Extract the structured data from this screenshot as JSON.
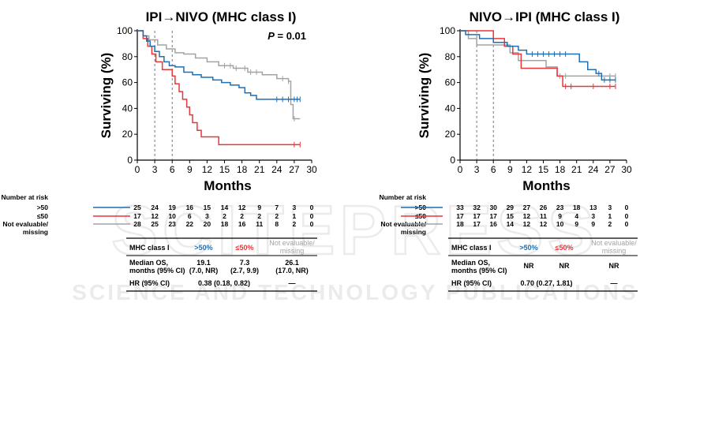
{
  "watermark": {
    "big": "SCITEPRESS",
    "small": "SCIENCE AND TECHNOLOGY PUBLICATIONS"
  },
  "colors": {
    "gt50": "#1f6fb4",
    "le50": "#e8363a",
    "nonevaluable": "#a3a3a3"
  },
  "chart_data": [
    {
      "type": "line",
      "step": true,
      "title": "IPI→NIVO (MHC class I)",
      "annotation": "P = 0.01",
      "annotation_parts": [
        "P",
        " = 0.01"
      ],
      "xlabel": "Months",
      "ylabel": "Surviving (%)",
      "xlim": [
        0,
        30
      ],
      "ylim": [
        0,
        100
      ],
      "xticks": [
        "0",
        "3",
        "6",
        "9",
        "12",
        "15",
        "18",
        "21",
        "24",
        "27",
        "30"
      ],
      "yticks": [
        "0",
        "20",
        "40",
        "60",
        "80",
        "100"
      ],
      "reference_lines_x": [
        3,
        6
      ],
      "series": [
        {
          "key": "gt50",
          "color": "#1f6fb4",
          "x": [
            0,
            1.0,
            1.6,
            2.2,
            3.0,
            3.8,
            4.6,
            5.5,
            6.5,
            8.0,
            9.5,
            11.0,
            13.0,
            14.5,
            16.0,
            17.5,
            18.5,
            19.5,
            20.5,
            28.0
          ],
          "y": [
            100,
            96,
            92,
            88,
            84,
            80,
            76,
            73,
            72,
            68,
            66,
            64,
            62,
            60,
            58,
            56,
            52,
            50,
            47,
            47
          ],
          "censor_x": [
            24,
            25,
            26,
            27,
            27.5,
            28
          ]
        },
        {
          "key": "le50",
          "color": "#e8363a",
          "x": [
            0,
            1.0,
            1.8,
            2.5,
            3.2,
            4.3,
            6.0,
            6.5,
            7.2,
            7.8,
            8.5,
            9.0,
            9.5,
            10.3,
            11.0,
            14.0,
            28.0
          ],
          "y": [
            100,
            94,
            88,
            82,
            76,
            70,
            65,
            59,
            53,
            47,
            41,
            35,
            29,
            23,
            18,
            12,
            12
          ],
          "censor_x": [
            27,
            28
          ]
        },
        {
          "key": "nonevaluable",
          "color": "#a3a3a3",
          "x": [
            0,
            1.0,
            2.0,
            3.5,
            5.0,
            6.5,
            8.0,
            10.0,
            12.0,
            14.0,
            16.5,
            19.0,
            21.5,
            24.0,
            26.0,
            26.4,
            26.8,
            28.0
          ],
          "y": [
            100,
            96,
            93,
            89,
            86,
            83,
            82,
            79,
            76,
            73,
            71,
            68,
            66,
            63,
            61,
            43,
            32,
            32
          ],
          "censor_x": [
            15,
            16,
            17,
            18.5,
            19.5,
            20.5,
            25,
            26,
            27
          ]
        }
      ],
      "number_at_risk": {
        "label": "Number at risk",
        "rows": [
          {
            "key": "gt50",
            "label": ">50",
            "values": [
              "25",
              "24",
              "19",
              "16",
              "15",
              "14",
              "12",
              "9",
              "7",
              "3",
              "0"
            ]
          },
          {
            "key": "le50",
            "label": "≤50",
            "values": [
              "17",
              "12",
              "10",
              "6",
              "3",
              "2",
              "2",
              "2",
              "2",
              "1",
              "0"
            ]
          },
          {
            "key": "nonevaluable",
            "label": "Not evaluable/",
            "label2": "missing",
            "values": [
              "28",
              "25",
              "23",
              "22",
              "20",
              "18",
              "16",
              "11",
              "8",
              "2",
              "0"
            ]
          }
        ]
      },
      "table": {
        "header": [
          "MHC class I",
          ">50%",
          "≤50%",
          "Not evaluable/",
          "missing"
        ],
        "median_label": [
          "Median OS,",
          "months (95% CI)"
        ],
        "median": [
          [
            "19.1",
            "(7.0, NR)"
          ],
          [
            "7.3",
            "(2.7, 9.9)"
          ],
          [
            "26.1",
            "(17.0, NR)"
          ]
        ],
        "hr_label": "HR (95% CI)",
        "hr_value": "0.38 (0.18, 0.82)",
        "hr_other": "—"
      }
    },
    {
      "type": "line",
      "step": true,
      "title": "NIVO→IPI (MHC class I)",
      "annotation": "",
      "annotation_parts": [],
      "xlabel": "Months",
      "ylabel": "Surviving (%)",
      "xlim": [
        0,
        30
      ],
      "ylim": [
        0,
        100
      ],
      "xticks": [
        "0",
        "3",
        "6",
        "9",
        "12",
        "15",
        "18",
        "21",
        "24",
        "27",
        "30"
      ],
      "yticks": [
        "0",
        "20",
        "40",
        "60",
        "80",
        "100"
      ],
      "reference_lines_x": [
        3,
        6
      ],
      "series": [
        {
          "key": "gt50",
          "color": "#1f6fb4",
          "x": [
            0,
            1.0,
            3.5,
            6.0,
            8.5,
            10.5,
            12.0,
            20.0,
            21.5,
            23.0,
            24.5,
            25.5,
            28.0
          ],
          "y": [
            100,
            97,
            94,
            91,
            88,
            85,
            82,
            82,
            76,
            70,
            67,
            62,
            62
          ],
          "censor_x": [
            13,
            14,
            15,
            16,
            17,
            18,
            19,
            25,
            26,
            27,
            28
          ]
        },
        {
          "key": "le50",
          "color": "#e8363a",
          "x": [
            0,
            3.5,
            6.0,
            8.0,
            9.5,
            11.0,
            16.0,
            17.5,
            18.5,
            28.0
          ],
          "y": [
            100,
            100,
            94,
            88,
            82,
            71,
            71,
            65,
            57,
            57
          ],
          "censor_x": [
            19,
            20,
            24,
            27,
            28
          ]
        },
        {
          "key": "nonevaluable",
          "color": "#a3a3a3",
          "x": [
            0,
            1.5,
            3.0,
            6.0,
            9.0,
            10.5,
            15.5,
            17.5,
            28.0
          ],
          "y": [
            100,
            94,
            89,
            89,
            83,
            77,
            72,
            65,
            65
          ],
          "censor_x": [
            18,
            19,
            27,
            28
          ]
        }
      ],
      "number_at_risk": {
        "label": "Number at risk",
        "rows": [
          {
            "key": "gt50",
            "label": ">50",
            "values": [
              "33",
              "32",
              "30",
              "29",
              "27",
              "26",
              "23",
              "18",
              "13",
              "3",
              "0"
            ]
          },
          {
            "key": "le50",
            "label": "≤50",
            "values": [
              "17",
              "17",
              "17",
              "15",
              "12",
              "11",
              "9",
              "4",
              "3",
              "1",
              "0"
            ]
          },
          {
            "key": "nonevaluable",
            "label": "Not evaluable/",
            "label2": "missing",
            "values": [
              "18",
              "17",
              "16",
              "14",
              "12",
              "12",
              "10",
              "9",
              "9",
              "2",
              "0"
            ]
          }
        ]
      },
      "table": {
        "header": [
          "MHC class I",
          ">50%",
          "≤50%",
          "Not evaluable/",
          "missing"
        ],
        "median_label": [
          "Median OS,",
          "months (95% CI)"
        ],
        "median": [
          [
            "NR"
          ],
          [
            "NR"
          ],
          [
            "NR"
          ]
        ],
        "hr_label": "HR (95% CI)",
        "hr_value": "0.70 (0.27, 1.81)",
        "hr_other": "—"
      }
    }
  ]
}
